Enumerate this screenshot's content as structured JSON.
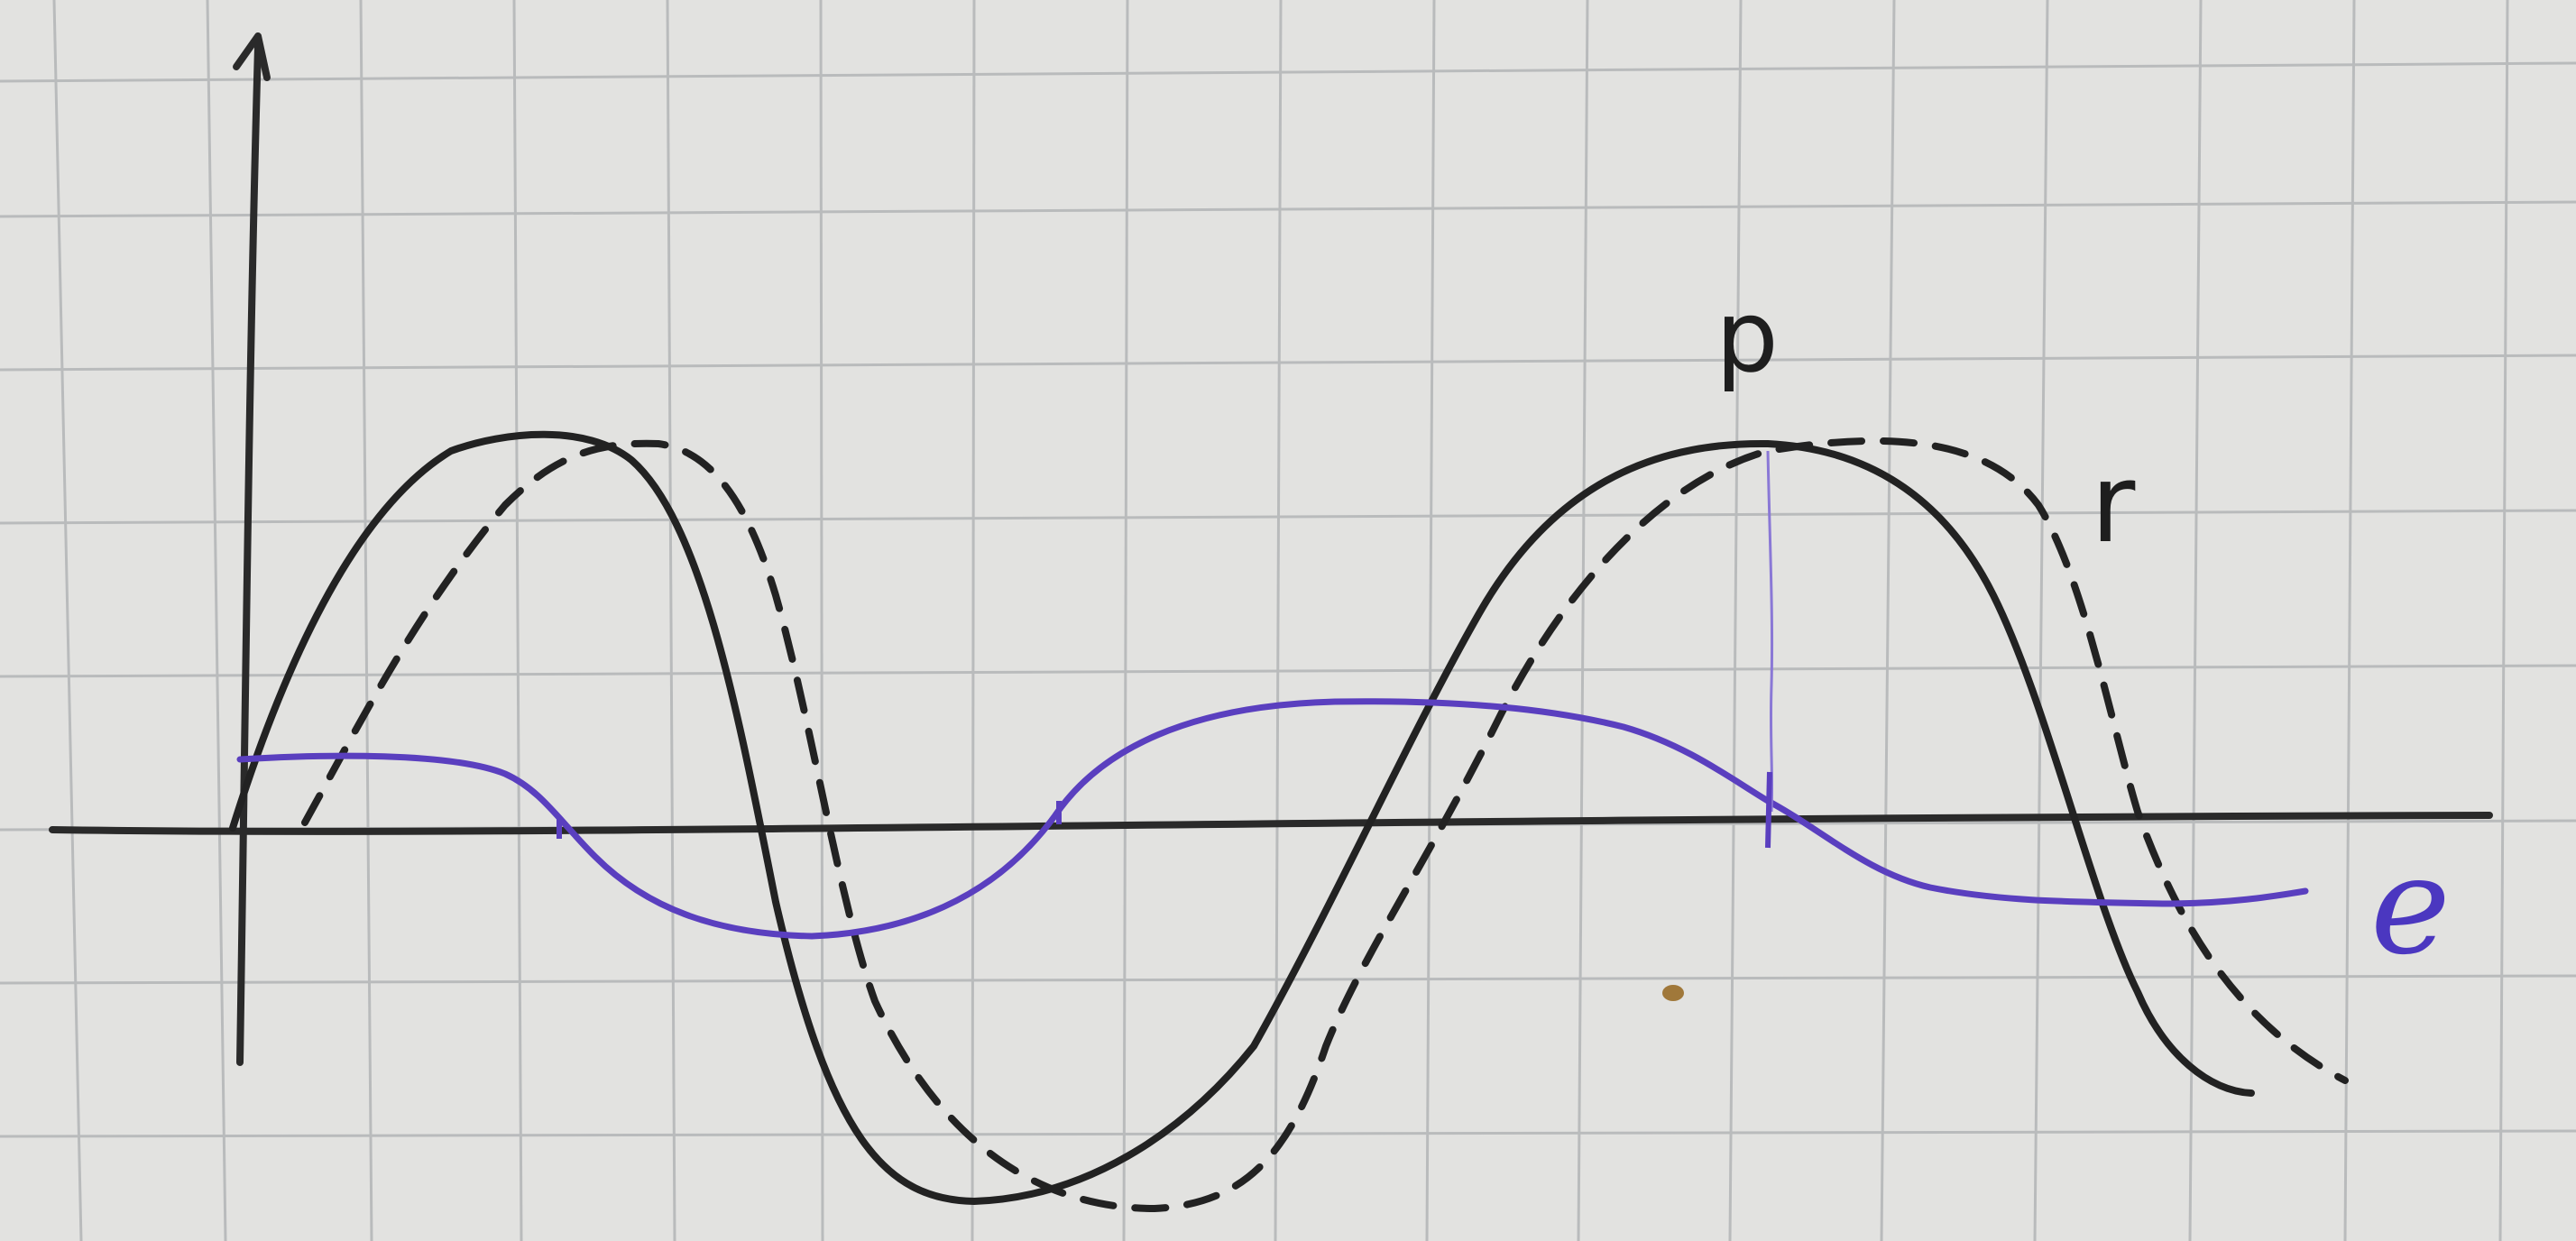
{
  "labels": {
    "p": "p",
    "r": "r",
    "e": "e"
  },
  "colors": {
    "paper": "#e2e2e0",
    "grid": "#b9bbbc",
    "ink": "#222222",
    "e_curve": "#5a3fbf"
  },
  "curves": {
    "p": "solid",
    "r": "dashed",
    "e": "solid"
  }
}
